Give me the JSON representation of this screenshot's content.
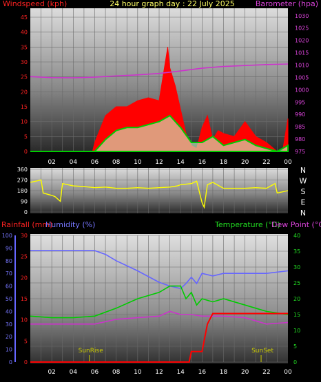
{
  "header": {
    "title": "24 hour graph day : 22 July 2025",
    "wind_label": "Windspeed (kph)",
    "baro_label": "Barometer (hpa)"
  },
  "colors": {
    "wind_gust": "#ff0000",
    "wind_avg": "#00cc00",
    "wind_light": "#ccffcc",
    "baro": "#cc33cc",
    "direction": "#ffff00",
    "humidity": "#6666ff",
    "rain": "#ff0000",
    "temperature": "#00cc00",
    "dew": "#cc33cc",
    "sun_marker": "#cccc00"
  },
  "chart_data": [
    {
      "type": "line",
      "name": "wind-baro",
      "x_ticks": [
        "02",
        "04",
        "06",
        "08",
        "10",
        "12",
        "14",
        "16",
        "18",
        "20",
        "22",
        "00"
      ],
      "x_hours": [
        2,
        4,
        6,
        8,
        10,
        12,
        14,
        16,
        18,
        20,
        22,
        24
      ],
      "y_left_ticks": [
        0,
        5,
        10,
        15,
        20,
        25,
        30,
        35,
        40,
        45
      ],
      "y_right_ticks": [
        975,
        980,
        985,
        990,
        995,
        1000,
        1005,
        1010,
        1015,
        1020,
        1025,
        1030
      ],
      "ylim_left": [
        0,
        48
      ],
      "ylim_right": [
        975,
        1033
      ],
      "series": [
        {
          "key": "gust",
          "x": [
            0,
            5.8,
            6,
            7,
            8,
            9,
            10,
            11,
            12,
            12.8,
            13,
            13.5,
            14,
            14.5,
            15,
            15.5,
            16,
            16.5,
            17,
            17.5,
            18,
            19,
            20,
            21,
            22,
            23,
            23.5,
            24
          ],
          "y": [
            0,
            0,
            3,
            12,
            15,
            15,
            17,
            18,
            17,
            35,
            28,
            22,
            14,
            6,
            2,
            1,
            8,
            12,
            4,
            7,
            6,
            5,
            10,
            5,
            3,
            0,
            0,
            11
          ]
        },
        {
          "key": "avg",
          "x": [
            0,
            6,
            7,
            8,
            9,
            10,
            11,
            12,
            13,
            14,
            15,
            16,
            17,
            18,
            19,
            20,
            21,
            22,
            23,
            24
          ],
          "y": [
            0,
            0,
            4,
            7,
            8,
            8,
            9,
            10,
            12,
            8,
            3,
            3,
            5,
            2,
            3,
            4,
            2,
            1,
            0,
            2
          ]
        },
        {
          "key": "baro",
          "x": [
            0,
            2,
            4,
            6,
            8,
            10,
            12,
            14,
            16,
            18,
            20,
            22,
            24
          ],
          "y": [
            1005.3,
            1004.9,
            1004.8,
            1005.1,
            1005.6,
            1006,
            1006.6,
            1007.6,
            1008.7,
            1009.4,
            1009.8,
            1010.2,
            1010.4
          ]
        }
      ]
    },
    {
      "type": "line",
      "name": "wind-direction",
      "y_ticks": [
        0,
        90,
        180,
        270,
        360
      ],
      "ylim": [
        0,
        360
      ],
      "compass": [
        "N",
        "W",
        "S",
        "E",
        "N"
      ],
      "x": [
        0,
        1,
        1.2,
        2,
        2.3,
        2.8,
        3,
        4,
        5,
        6,
        7,
        8,
        9,
        10,
        11,
        12,
        13,
        13.7,
        14,
        15,
        15.5,
        16,
        16.2,
        16.5,
        17,
        18,
        19,
        20,
        21,
        22,
        22.8,
        23,
        24
      ],
      "y": [
        250,
        270,
        160,
        140,
        130,
        90,
        240,
        220,
        215,
        205,
        210,
        200,
        200,
        205,
        200,
        205,
        210,
        220,
        230,
        240,
        260,
        80,
        40,
        230,
        250,
        200,
        200,
        200,
        205,
        200,
        240,
        160,
        180
      ]
    },
    {
      "type": "line",
      "name": "rain-humidity-temperature",
      "x_ticks": [
        "02",
        "04",
        "06",
        "08",
        "10",
        "12",
        "14",
        "16",
        "18",
        "20",
        "22",
        "00"
      ],
      "y_rain_ticks": [
        0,
        5,
        10,
        15,
        20,
        25,
        30
      ],
      "y_humidity_ticks": [
        0,
        10,
        20,
        30,
        40,
        50,
        60,
        70,
        80,
        90,
        100
      ],
      "y_temp_ticks": [
        0,
        5,
        10,
        15,
        20,
        25,
        30,
        35,
        40
      ],
      "ylim_rain": [
        0,
        30
      ],
      "ylim_temp": [
        0,
        40
      ],
      "sunrise_hour": 5.5,
      "sunset_hour": 21.5,
      "sunrise_label": "SunRise",
      "sunset_label": "SunSet",
      "series": [
        {
          "key": "humidity",
          "x": [
            0,
            2,
            4,
            6,
            7,
            8,
            10,
            12,
            13,
            14,
            14.5,
            15,
            15.5,
            16,
            17,
            18,
            20,
            22,
            24
          ],
          "y": [
            88,
            88,
            88,
            88,
            85,
            80,
            72,
            63,
            60,
            58,
            62,
            67,
            62,
            70,
            68,
            70,
            70,
            70,
            72
          ]
        },
        {
          "key": "temperature",
          "x": [
            0,
            2,
            4,
            6,
            8,
            10,
            12,
            13,
            14,
            14.5,
            15,
            15.5,
            16,
            17,
            18,
            20,
            22,
            24
          ],
          "y": [
            14.5,
            14,
            14,
            14.5,
            17,
            20,
            22,
            24,
            24,
            20,
            22,
            18,
            20,
            19,
            20,
            18,
            16,
            15
          ]
        },
        {
          "key": "dew",
          "x": [
            0,
            2,
            4,
            6,
            8,
            10,
            12,
            13,
            14,
            15,
            16,
            18,
            20,
            22,
            24
          ],
          "y": [
            12,
            12,
            12,
            12,
            13.5,
            14,
            14.5,
            16,
            15,
            15,
            14.5,
            14.5,
            14,
            12,
            12.5
          ]
        },
        {
          "key": "rain",
          "x": [
            0,
            14.8,
            15,
            16,
            16.5,
            17,
            24
          ],
          "y": [
            0,
            0,
            2.5,
            2.5,
            9,
            11.5,
            11.5
          ]
        }
      ]
    }
  ],
  "lower_header": {
    "rain_label": "Rainfall (mm)",
    "humidity_label": "Humidity (%)",
    "temp_label": "Temperature (°C)",
    "dew_label": "Dew Point (°C)"
  }
}
